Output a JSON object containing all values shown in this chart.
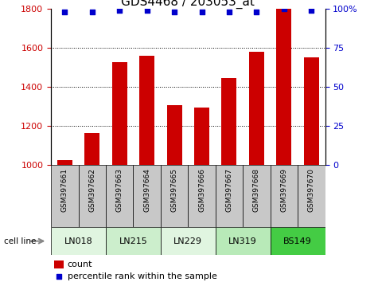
{
  "title": "GDS4468 / 203053_at",
  "samples": [
    "GSM397661",
    "GSM397662",
    "GSM397663",
    "GSM397664",
    "GSM397665",
    "GSM397666",
    "GSM397667",
    "GSM397668",
    "GSM397669",
    "GSM397670"
  ],
  "counts": [
    1025,
    1165,
    1525,
    1558,
    1305,
    1295,
    1445,
    1578,
    1800,
    1550
  ],
  "percentile_ranks": [
    98,
    98,
    99,
    99,
    98,
    98,
    98,
    98,
    100,
    99
  ],
  "cell_line_data": [
    {
      "label": "LN018",
      "indices": [
        0,
        1
      ],
      "color": "#e0f5e0"
    },
    {
      "label": "LN215",
      "indices": [
        2,
        3
      ],
      "color": "#cceecc"
    },
    {
      "label": "LN229",
      "indices": [
        4,
        5
      ],
      "color": "#e0f5e0"
    },
    {
      "label": "LN319",
      "indices": [
        6,
        7
      ],
      "color": "#b8eab8"
    },
    {
      "label": "BS149",
      "indices": [
        8,
        9
      ],
      "color": "#44cc44"
    }
  ],
  "ylim_left": [
    1000,
    1800
  ],
  "ylim_right": [
    0,
    100
  ],
  "yticks_left": [
    1000,
    1200,
    1400,
    1600,
    1800
  ],
  "yticks_right": [
    0,
    25,
    50,
    75,
    100
  ],
  "bar_color": "#cc0000",
  "dot_color": "#0000cc",
  "tick_area_color": "#c8c8c8",
  "title_fontsize": 11,
  "legend_fontsize": 8,
  "grid_lines": [
    1200,
    1400,
    1600
  ],
  "cell_line_label": "cell line",
  "legend_count_label": "count",
  "legend_pct_label": "percentile rank within the sample"
}
